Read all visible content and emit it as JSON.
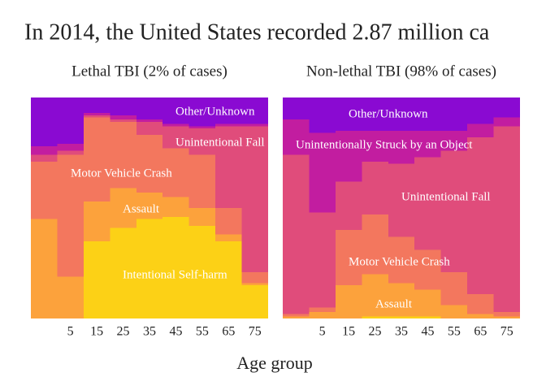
{
  "title": "In 2014, the United States recorded 2.87 million ca",
  "x_label": "Age group",
  "chart_data": [
    {
      "type": "stacked-step-area",
      "subtitle": "Lethal TBI (2% of cases)",
      "categories": [
        null,
        "5",
        "15",
        "25",
        "35",
        "45",
        "55",
        "65",
        "75"
      ],
      "ylim": [
        0,
        100
      ],
      "series": [
        {
          "name": "Intentional Self-harm",
          "color": "#fcd116",
          "values": [
            0,
            0,
            35,
            41,
            45,
            46,
            42,
            35,
            15
          ]
        },
        {
          "name": "Assault",
          "color": "#fca23c",
          "values": [
            45,
            19,
            18,
            18,
            12,
            9,
            8,
            3,
            1
          ]
        },
        {
          "name": "Motor Vehicle Crash",
          "color": "#f3775e",
          "values": [
            26,
            55,
            38,
            30,
            26,
            22,
            24,
            12,
            5
          ]
        },
        {
          "name": "Unintentional Fall",
          "color": "#e04c7b",
          "values": [
            3,
            2,
            1,
            1,
            6,
            10,
            12,
            37,
            66
          ]
        },
        {
          "name": "Unintentionally Struck by an Object",
          "color": "#c21da0",
          "values": [
            4,
            3,
            1,
            2,
            1,
            1,
            1,
            1,
            1
          ]
        },
        {
          "name": "Other/Unknown",
          "color": "#8a0ad2",
          "values": [
            22,
            21,
            7,
            8,
            10,
            12,
            13,
            12,
            12
          ]
        }
      ]
    },
    {
      "type": "stacked-step-area",
      "subtitle": "Non-lethal TBI (98% of cases)",
      "categories": [
        null,
        "5",
        "15",
        "25",
        "35",
        "45",
        "55",
        "65",
        "75"
      ],
      "ylim": [
        0,
        100
      ],
      "series": [
        {
          "name": "Intentional Self-harm",
          "color": "#fcd116",
          "values": [
            0,
            0,
            0,
            1,
            1,
            1,
            0,
            0,
            0
          ]
        },
        {
          "name": "Assault",
          "color": "#fca23c",
          "values": [
            1,
            3,
            15,
            19,
            15,
            12,
            6,
            2,
            1
          ]
        },
        {
          "name": "Motor Vehicle Crash",
          "color": "#f3775e",
          "values": [
            1,
            2,
            25,
            27,
            21,
            18,
            15,
            9,
            2
          ]
        },
        {
          "name": "Unintentional Fall",
          "color": "#e04c7b",
          "values": [
            72,
            43,
            22,
            24,
            33,
            42,
            55,
            71,
            84
          ]
        },
        {
          "name": "Unintentionally Struck by an Object",
          "color": "#c21da0",
          "values": [
            16,
            36,
            23,
            14,
            15,
            12,
            9,
            6,
            4
          ]
        },
        {
          "name": "Other/Unknown",
          "color": "#8a0ad2",
          "values": [
            10,
            16,
            15,
            15,
            15,
            15,
            15,
            12,
            9
          ]
        }
      ]
    }
  ]
}
